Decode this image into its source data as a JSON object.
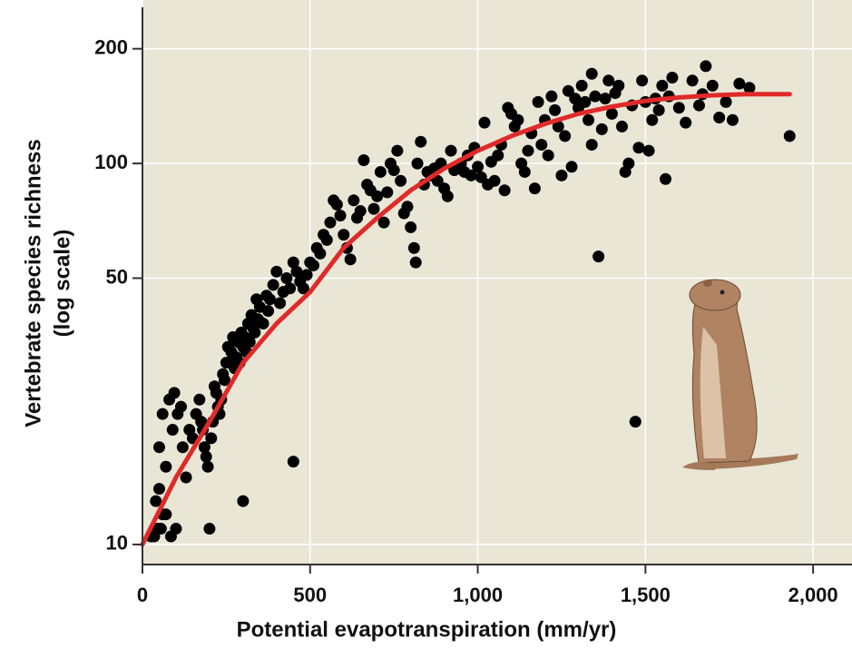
{
  "chart_data": {
    "type": "scatter",
    "ylabel": "Vertebrate species richness",
    "ylabel2": "(log scale)",
    "xlabel": "Potential evapotranspiration (mm/yr)",
    "color": "#000000",
    "ylog": true,
    "grid": true,
    "xlim": [
      0,
      2116
    ],
    "ylim": [
      8.86,
      257
    ],
    "xticks": [
      0,
      500,
      {
        "value": 1000,
        "label": "1,000"
      },
      {
        "value": 1500,
        "label": "1,500"
      },
      {
        "value": 2000,
        "label": "2,000"
      }
    ],
    "yticks": [
      10,
      50,
      100,
      200
    ],
    "x": [
      25,
      35,
      45,
      55,
      40,
      50,
      60,
      70,
      85,
      100,
      50,
      60,
      70,
      90,
      105,
      115,
      120,
      130,
      80,
      95,
      140,
      150,
      160,
      170,
      175,
      180,
      185,
      190,
      195,
      200,
      205,
      210,
      215,
      220,
      225,
      230,
      235,
      240,
      245,
      250,
      255,
      260,
      265,
      270,
      275,
      280,
      285,
      290,
      295,
      300,
      305,
      310,
      315,
      320,
      325,
      330,
      335,
      340,
      345,
      350,
      360,
      370,
      375,
      380,
      390,
      400,
      410,
      420,
      430,
      440,
      450,
      460,
      470,
      480,
      490,
      500,
      510,
      520,
      530,
      540,
      550,
      560,
      570,
      580,
      590,
      600,
      610,
      620,
      630,
      640,
      650,
      660,
      670,
      680,
      690,
      700,
      710,
      720,
      730,
      740,
      750,
      760,
      770,
      780,
      790,
      800,
      810,
      815,
      820,
      830,
      840,
      850,
      860,
      870,
      880,
      890,
      900,
      910,
      920,
      930,
      950,
      960,
      970,
      980,
      990,
      1000,
      1010,
      1020,
      1030,
      1040,
      1050,
      1060,
      1070,
      1080,
      1090,
      1100,
      1110,
      1120,
      1130,
      1140,
      1150,
      1160,
      1170,
      1180,
      1190,
      1200,
      1210,
      1220,
      1230,
      1240,
      1250,
      1260,
      1270,
      1280,
      1290,
      1300,
      1310,
      1320,
      1330,
      1340,
      1350,
      1360,
      1370,
      1380,
      1390,
      1400,
      1410,
      1420,
      1430,
      1440,
      1450,
      1460,
      1470,
      1480,
      1490,
      1500,
      1510,
      1520,
      1530,
      1540,
      1550,
      1560,
      1570,
      1580,
      1600,
      1620,
      1640,
      1660,
      1670,
      1680,
      1700,
      1720,
      1740,
      1760,
      1780,
      1810,
      1930,
      450,
      300,
      1340
    ],
    "values": [
      10.5,
      10.5,
      11,
      11,
      13,
      14,
      12,
      12,
      10.5,
      11,
      18,
      22,
      16,
      20,
      22,
      23,
      18,
      15,
      24,
      25,
      20,
      19,
      22,
      24,
      21,
      20,
      18,
      17,
      16,
      11,
      19,
      21,
      26,
      25,
      23,
      22,
      24,
      28,
      27,
      30,
      33,
      30,
      32,
      35,
      29,
      31,
      34,
      30,
      36,
      33,
      35,
      32,
      38,
      34,
      40,
      37,
      36,
      44,
      39,
      42,
      38,
      45,
      41,
      44,
      48,
      52,
      43,
      46,
      50,
      47,
      55,
      52,
      49,
      47,
      51,
      55,
      54,
      60,
      58,
      65,
      63,
      70,
      80,
      78,
      73,
      65,
      60,
      56,
      80,
      72,
      75,
      102,
      88,
      85,
      76,
      82,
      95,
      70,
      84,
      100,
      96,
      108,
      90,
      74,
      77,
      68,
      60,
      55,
      100,
      114,
      88,
      95,
      93,
      97,
      90,
      100,
      86,
      82,
      108,
      96,
      100,
      95,
      105,
      93,
      110,
      98,
      92,
      128,
      88,
      101,
      90,
      105,
      112,
      85,
      140,
      135,
      125,
      130,
      100,
      95,
      108,
      120,
      86,
      145,
      112,
      130,
      105,
      150,
      138,
      125,
      93,
      118,
      155,
      98,
      148,
      140,
      160,
      145,
      130,
      172,
      150,
      57,
      123,
      148,
      165,
      135,
      153,
      160,
      125,
      95,
      100,
      142,
      21,
      110,
      165,
      145,
      108,
      130,
      148,
      138,
      160,
      91,
      150,
      168,
      140,
      128,
      165,
      142,
      152,
      180,
      160,
      132,
      145,
      130,
      162,
      158,
      118,
      16.5,
      13,
      112
    ],
    "fit": {
      "color": "#e02a2a",
      "x": [
        0,
        100,
        200,
        300,
        400,
        500,
        600,
        700,
        800,
        900,
        1000,
        1100,
        1200,
        1300,
        1400,
        1500,
        1600,
        1700,
        1800,
        1930
      ],
      "y": [
        10,
        15,
        21,
        30,
        38,
        46,
        60,
        72,
        85,
        97,
        108,
        118,
        127,
        135,
        141,
        146,
        149,
        151,
        152,
        152
      ]
    }
  }
}
